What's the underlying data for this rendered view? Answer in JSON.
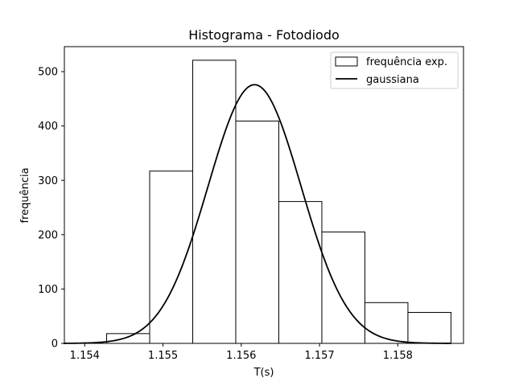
{
  "chart_data": {
    "type": "bar",
    "title": "Histograma - Fotodiodo",
    "xlabel": "T(s)",
    "ylabel": "frequência",
    "xlim": [
      1.15374,
      1.15884
    ],
    "ylim": [
      0,
      546
    ],
    "x_ticks": [
      "1.154",
      "1.155",
      "1.156",
      "1.157",
      "1.158"
    ],
    "x_tick_values": [
      1.154,
      1.155,
      1.156,
      1.157,
      1.158
    ],
    "y_ticks": [
      "0",
      "100",
      "200",
      "300",
      "400",
      "500"
    ],
    "y_tick_values": [
      0,
      100,
      200,
      300,
      400,
      500
    ],
    "grid": false,
    "legend_position": "top-right",
    "series": [
      {
        "name": "frequência exp.",
        "kind": "histogram",
        "bin_edges": [
          1.15428,
          1.15483,
          1.15538,
          1.15593,
          1.15648,
          1.15703,
          1.15758,
          1.15813,
          1.15868
        ],
        "values": [
          18,
          317,
          521,
          409,
          261,
          205,
          75,
          57
        ],
        "fill": "#ffffff",
        "edge_color": "#000000"
      },
      {
        "name": "gaussiana",
        "kind": "line",
        "mean": 1.15617,
        "sigma": 0.000595,
        "peak": 476,
        "x_range": [
          1.15373,
          1.15868
        ],
        "color": "#000000"
      }
    ]
  }
}
